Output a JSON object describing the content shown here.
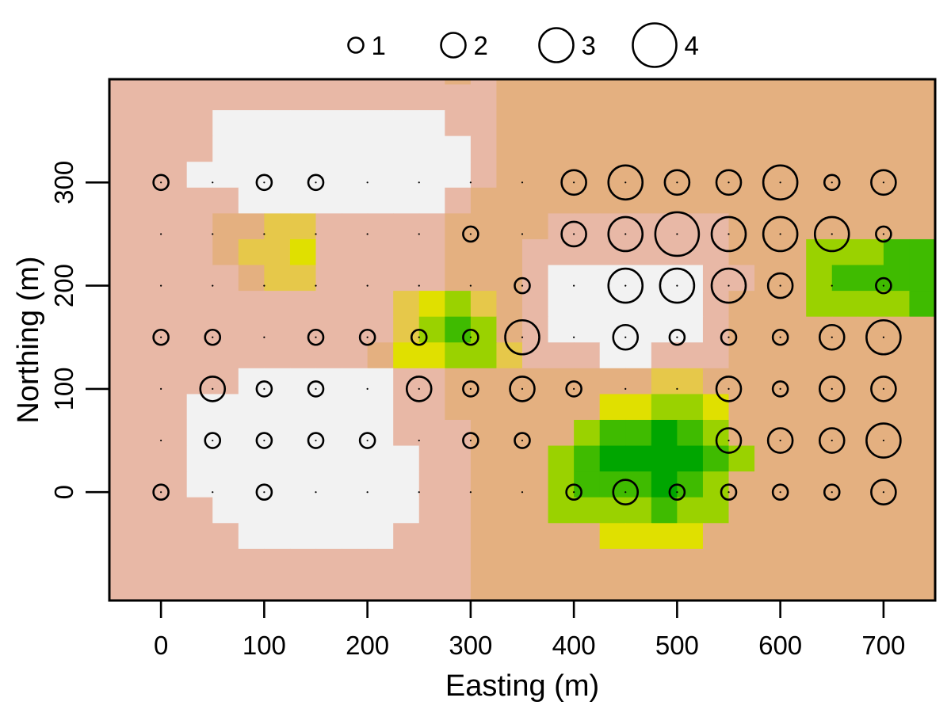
{
  "chart_data": {
    "type": "scatter",
    "subtype": "bubble-over-raster",
    "xlabel": "Easting (m)",
    "ylabel": "Northing (m)",
    "xlim": [
      -50,
      750
    ],
    "ylim": [
      -105,
      400
    ],
    "xticks": [
      0,
      100,
      200,
      300,
      400,
      500,
      600,
      700
    ],
    "yticks": [
      0,
      100,
      200,
      300
    ],
    "legend": {
      "placement": "top",
      "entries": [
        "1",
        "2",
        "3",
        "4"
      ],
      "sizes": [
        1,
        2,
        3,
        4
      ]
    },
    "raster_palette": [
      "#f2f2f2",
      "#e8b8a6",
      "#e4b080",
      "#e6c84a",
      "#e0e000",
      "#9ad200",
      "#3fbb00",
      "#00a600"
    ],
    "raster_cell_size": 25,
    "raster_origin": {
      "x": -50,
      "y": -105
    },
    "raster_grid": [
      "11111111111112122222222222222222",
      "11111111111111122222222222222222",
      "11110000000001122222222222222222",
      "11110000000000122222222222222222",
      "11100000000000122222222222222222",
      "11111000000001222222222222222222",
      "11112233111112222111111122222222",
      "11112334111112221111111122255566",
      "11111233111112221000000112256666",
      "11111111111345321000000122255556",
      "11111111111356521000000122222222",
      "11111111112445531110011122222222",
      "11111000000112222222233222222222",
      "11100000000112222224455422222222",
      "11100000000111222256676522222222",
      "11100000000011222567777652222222",
      "11100000000011222566676522222222",
      "11110000000011222555565522222222",
      "11111000000111222224444222222222",
      "11111111111111222222222222222222",
      "11111111111111222222222222222222"
    ],
    "points": [
      {
        "x": 0,
        "y": 300,
        "v": 1
      },
      {
        "x": 50,
        "y": 300,
        "v": 0
      },
      {
        "x": 100,
        "y": 300,
        "v": 1
      },
      {
        "x": 150,
        "y": 300,
        "v": 1
      },
      {
        "x": 200,
        "y": 300,
        "v": 0
      },
      {
        "x": 250,
        "y": 300,
        "v": 0
      },
      {
        "x": 300,
        "y": 300,
        "v": 0
      },
      {
        "x": 350,
        "y": 300,
        "v": 0
      },
      {
        "x": 400,
        "y": 300,
        "v": 2
      },
      {
        "x": 450,
        "y": 300,
        "v": 3
      },
      {
        "x": 500,
        "y": 300,
        "v": 2
      },
      {
        "x": 550,
        "y": 300,
        "v": 2
      },
      {
        "x": 600,
        "y": 300,
        "v": 3
      },
      {
        "x": 650,
        "y": 300,
        "v": 1
      },
      {
        "x": 700,
        "y": 300,
        "v": 2
      },
      {
        "x": 0,
        "y": 250,
        "v": 0
      },
      {
        "x": 50,
        "y": 250,
        "v": 0
      },
      {
        "x": 100,
        "y": 250,
        "v": 0
      },
      {
        "x": 150,
        "y": 250,
        "v": 0
      },
      {
        "x": 200,
        "y": 250,
        "v": 0
      },
      {
        "x": 250,
        "y": 250,
        "v": 0
      },
      {
        "x": 300,
        "y": 250,
        "v": 1
      },
      {
        "x": 350,
        "y": 250,
        "v": 0
      },
      {
        "x": 400,
        "y": 250,
        "v": 2
      },
      {
        "x": 450,
        "y": 250,
        "v": 3
      },
      {
        "x": 500,
        "y": 250,
        "v": 4
      },
      {
        "x": 550,
        "y": 250,
        "v": 3
      },
      {
        "x": 600,
        "y": 250,
        "v": 3
      },
      {
        "x": 650,
        "y": 250,
        "v": 3
      },
      {
        "x": 700,
        "y": 250,
        "v": 1
      },
      {
        "x": 0,
        "y": 200,
        "v": 0
      },
      {
        "x": 50,
        "y": 200,
        "v": 0
      },
      {
        "x": 100,
        "y": 200,
        "v": 0
      },
      {
        "x": 150,
        "y": 200,
        "v": 0
      },
      {
        "x": 200,
        "y": 200,
        "v": 0
      },
      {
        "x": 250,
        "y": 200,
        "v": 0
      },
      {
        "x": 300,
        "y": 200,
        "v": 0
      },
      {
        "x": 350,
        "y": 200,
        "v": 1
      },
      {
        "x": 400,
        "y": 200,
        "v": 0
      },
      {
        "x": 450,
        "y": 200,
        "v": 3
      },
      {
        "x": 500,
        "y": 200,
        "v": 3
      },
      {
        "x": 550,
        "y": 200,
        "v": 3
      },
      {
        "x": 600,
        "y": 200,
        "v": 2
      },
      {
        "x": 650,
        "y": 200,
        "v": 0
      },
      {
        "x": 700,
        "y": 200,
        "v": 1
      },
      {
        "x": 0,
        "y": 150,
        "v": 1
      },
      {
        "x": 50,
        "y": 150,
        "v": 1
      },
      {
        "x": 100,
        "y": 150,
        "v": 0
      },
      {
        "x": 150,
        "y": 150,
        "v": 1
      },
      {
        "x": 200,
        "y": 150,
        "v": 1
      },
      {
        "x": 250,
        "y": 150,
        "v": 1
      },
      {
        "x": 300,
        "y": 150,
        "v": 1
      },
      {
        "x": 350,
        "y": 150,
        "v": 3
      },
      {
        "x": 400,
        "y": 150,
        "v": 0
      },
      {
        "x": 450,
        "y": 150,
        "v": 2
      },
      {
        "x": 500,
        "y": 150,
        "v": 1
      },
      {
        "x": 550,
        "y": 150,
        "v": 1
      },
      {
        "x": 600,
        "y": 150,
        "v": 1
      },
      {
        "x": 650,
        "y": 150,
        "v": 2
      },
      {
        "x": 700,
        "y": 150,
        "v": 3
      },
      {
        "x": 0,
        "y": 100,
        "v": 0
      },
      {
        "x": 50,
        "y": 100,
        "v": 2
      },
      {
        "x": 100,
        "y": 100,
        "v": 1
      },
      {
        "x": 150,
        "y": 100,
        "v": 1
      },
      {
        "x": 200,
        "y": 100,
        "v": 0
      },
      {
        "x": 250,
        "y": 100,
        "v": 2
      },
      {
        "x": 300,
        "y": 100,
        "v": 1
      },
      {
        "x": 350,
        "y": 100,
        "v": 2
      },
      {
        "x": 400,
        "y": 100,
        "v": 1
      },
      {
        "x": 450,
        "y": 100,
        "v": 0
      },
      {
        "x": 500,
        "y": 100,
        "v": 0
      },
      {
        "x": 550,
        "y": 100,
        "v": 2
      },
      {
        "x": 600,
        "y": 100,
        "v": 1
      },
      {
        "x": 650,
        "y": 100,
        "v": 2
      },
      {
        "x": 700,
        "y": 100,
        "v": 2
      },
      {
        "x": 0,
        "y": 50,
        "v": 0
      },
      {
        "x": 50,
        "y": 50,
        "v": 1
      },
      {
        "x": 100,
        "y": 50,
        "v": 1
      },
      {
        "x": 150,
        "y": 50,
        "v": 1
      },
      {
        "x": 200,
        "y": 50,
        "v": 1
      },
      {
        "x": 250,
        "y": 50,
        "v": 0
      },
      {
        "x": 300,
        "y": 50,
        "v": 1
      },
      {
        "x": 350,
        "y": 50,
        "v": 1
      },
      {
        "x": 550,
        "y": 50,
        "v": 2
      },
      {
        "x": 600,
        "y": 50,
        "v": 2
      },
      {
        "x": 650,
        "y": 50,
        "v": 2
      },
      {
        "x": 700,
        "y": 50,
        "v": 3
      },
      {
        "x": 0,
        "y": 0,
        "v": 1
      },
      {
        "x": 50,
        "y": 0,
        "v": 0
      },
      {
        "x": 100,
        "y": 0,
        "v": 1
      },
      {
        "x": 150,
        "y": 0,
        "v": 0
      },
      {
        "x": 200,
        "y": 0,
        "v": 0
      },
      {
        "x": 250,
        "y": 0,
        "v": 0
      },
      {
        "x": 300,
        "y": 0,
        "v": 0
      },
      {
        "x": 350,
        "y": 0,
        "v": 0
      },
      {
        "x": 400,
        "y": 0,
        "v": 1
      },
      {
        "x": 450,
        "y": 0,
        "v": 2
      },
      {
        "x": 500,
        "y": 0,
        "v": 1
      },
      {
        "x": 550,
        "y": 0,
        "v": 1
      },
      {
        "x": 600,
        "y": 0,
        "v": 1
      },
      {
        "x": 650,
        "y": 0,
        "v": 1
      },
      {
        "x": 700,
        "y": 0,
        "v": 2
      }
    ]
  }
}
